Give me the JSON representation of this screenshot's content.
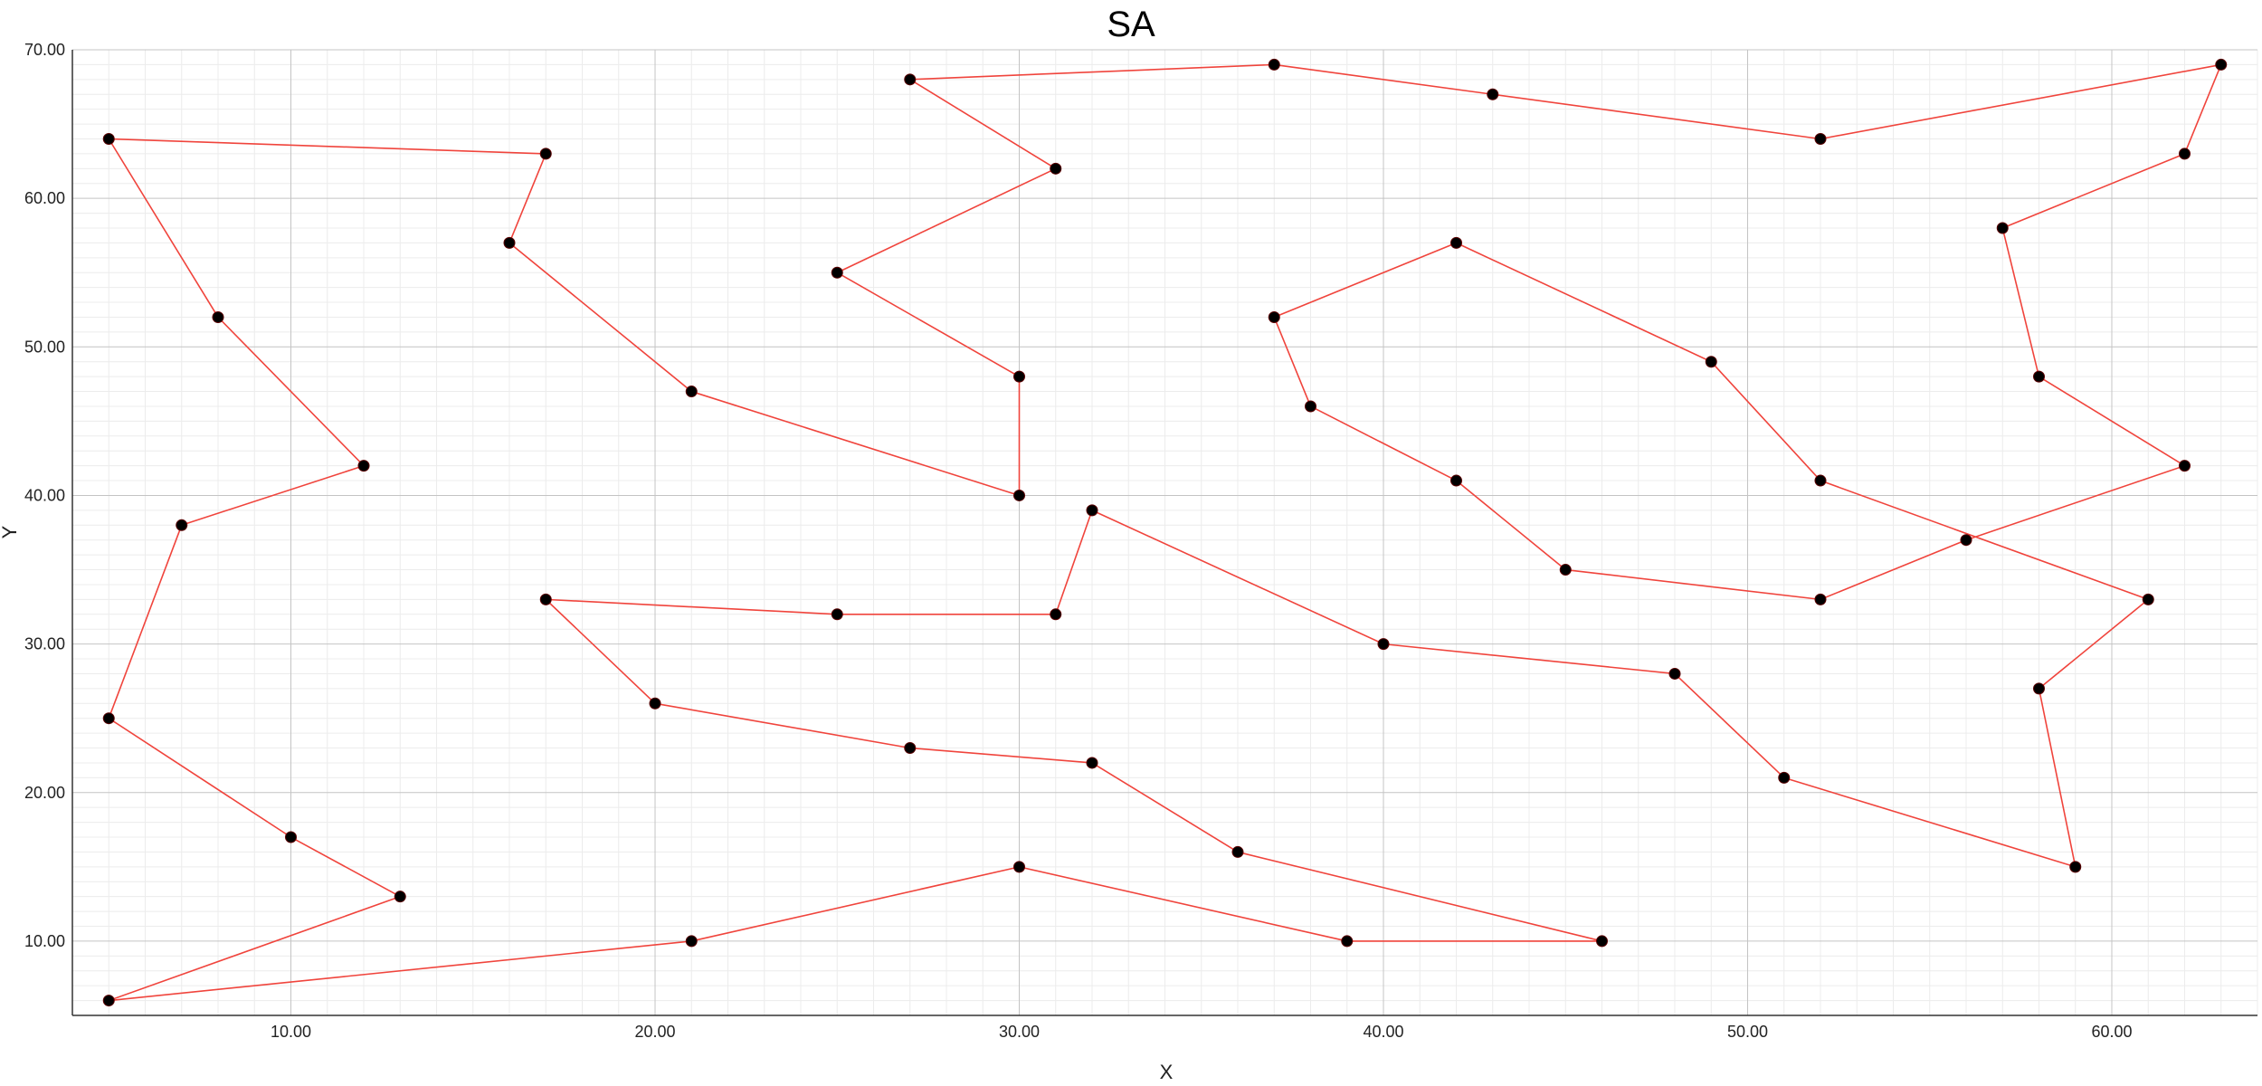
{
  "chart_data": {
    "type": "line",
    "title": "SA",
    "xlabel": "X",
    "ylabel": "Y",
    "xlim": [
      4.0,
      64.0
    ],
    "ylim": [
      5.0,
      70.0
    ],
    "xticks": [
      10,
      20,
      30,
      40,
      50,
      60
    ],
    "yticks": [
      10,
      20,
      30,
      40,
      50,
      60,
      70
    ],
    "tick_format": "2 decimals",
    "grid": true,
    "legend": "none",
    "colors": {
      "line": "#f0443c",
      "marker": "#000000"
    },
    "series": [
      {
        "closed": true,
        "points": [
          [
            5,
            64
          ],
          [
            17,
            63
          ],
          [
            16,
            57
          ],
          [
            21,
            47
          ],
          [
            30,
            40
          ],
          [
            30,
            48
          ],
          [
            25,
            55
          ],
          [
            31,
            62
          ],
          [
            27,
            68
          ],
          [
            37,
            69
          ],
          [
            43,
            67
          ],
          [
            52,
            64
          ],
          [
            63,
            69
          ],
          [
            62,
            63
          ],
          [
            57,
            58
          ],
          [
            58,
            48
          ],
          [
            62,
            42
          ],
          [
            56,
            37
          ],
          [
            52,
            33
          ],
          [
            45,
            35
          ],
          [
            42,
            41
          ],
          [
            38,
            46
          ],
          [
            37,
            52
          ],
          [
            42,
            57
          ],
          [
            49,
            49
          ],
          [
            52,
            41
          ],
          [
            61,
            33
          ],
          [
            58,
            27
          ],
          [
            59,
            15
          ],
          [
            51,
            21
          ],
          [
            48,
            28
          ],
          [
            40,
            30
          ],
          [
            32,
            39
          ],
          [
            31,
            32
          ],
          [
            25,
            32
          ],
          [
            17,
            33
          ],
          [
            20,
            26
          ],
          [
            27,
            23
          ],
          [
            32,
            22
          ],
          [
            36,
            16
          ],
          [
            46,
            10
          ],
          [
            39,
            10
          ],
          [
            30,
            15
          ],
          [
            21,
            10
          ],
          [
            5,
            6
          ],
          [
            13,
            13
          ],
          [
            10,
            17
          ],
          [
            5,
            25
          ],
          [
            7,
            38
          ],
          [
            12,
            42
          ],
          [
            8,
            52
          ]
        ]
      }
    ]
  }
}
